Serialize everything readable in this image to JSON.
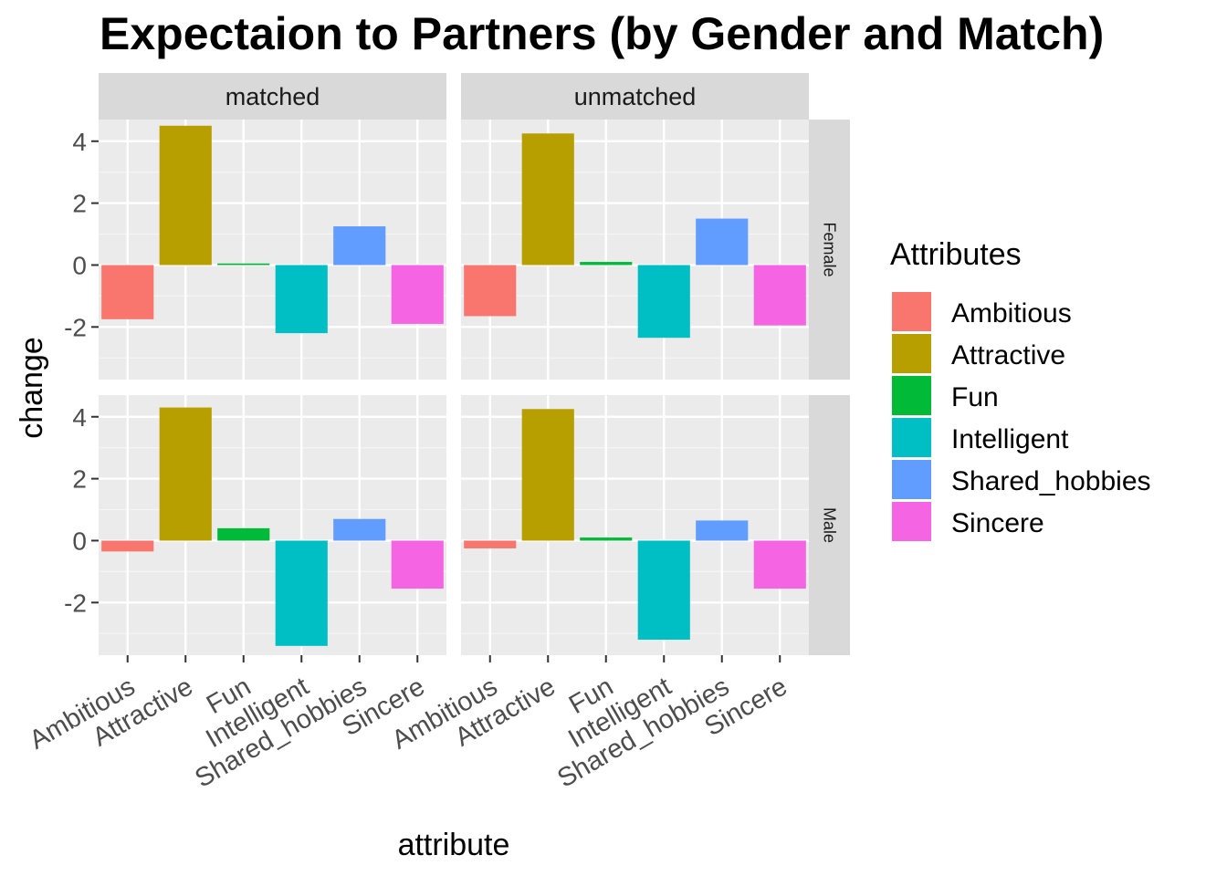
{
  "chart_data": {
    "type": "bar",
    "title": "Expectaion to Partners (by Gender and Match)",
    "xlabel": "attribute",
    "ylabel": "change",
    "categories": [
      "Ambitious",
      "Attractive",
      "Fun",
      "Intelligent",
      "Shared_hobbies",
      "Sincere"
    ],
    "ylim": [
      -3.7,
      4.7
    ],
    "yticks": [
      -2,
      0,
      2,
      4
    ],
    "col_facets": [
      "matched",
      "unmatched"
    ],
    "row_facets": [
      "Female",
      "Male"
    ],
    "panels": [
      {
        "col": "matched",
        "row": "Female",
        "values": [
          -1.75,
          4.5,
          0.05,
          -2.2,
          1.25,
          -1.9
        ]
      },
      {
        "col": "unmatched",
        "row": "Female",
        "values": [
          -1.65,
          4.25,
          0.1,
          -2.35,
          1.5,
          -1.95
        ]
      },
      {
        "col": "matched",
        "row": "Male",
        "values": [
          -0.35,
          4.3,
          0.4,
          -3.4,
          0.7,
          -1.55
        ]
      },
      {
        "col": "unmatched",
        "row": "Male",
        "values": [
          -0.25,
          4.25,
          0.1,
          -3.2,
          0.65,
          -1.55
        ]
      }
    ],
    "legend": {
      "title": "Attributes",
      "position": "right",
      "items": [
        "Ambitious",
        "Attractive",
        "Fun",
        "Intelligent",
        "Shared_hobbies",
        "Sincere"
      ]
    },
    "colors": [
      "#F8766D",
      "#B79F00",
      "#00BA38",
      "#00BFC4",
      "#619CFF",
      "#F564E3"
    ],
    "grid": true
  }
}
